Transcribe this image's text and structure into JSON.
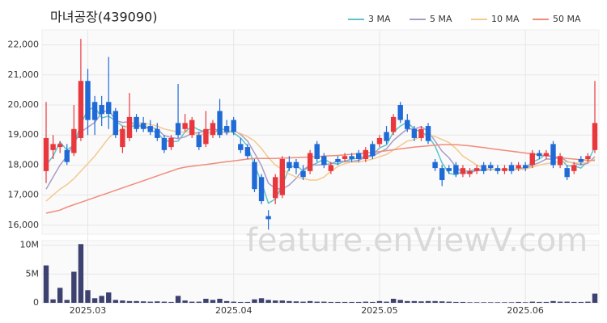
{
  "chart_data": [
    {
      "type": "candlestick",
      "title": "마녀공장(439090)",
      "watermark": "feature.enViewV.com",
      "up_color": "#e8383d",
      "down_color": "#1f6ad6",
      "ylim": [
        15700,
        22500
      ],
      "yticks": [
        {
          "value": 16000,
          "label": "16,000"
        },
        {
          "value": 17000,
          "label": "17,000"
        },
        {
          "value": 18000,
          "label": "18,000"
        },
        {
          "value": 19000,
          "label": "19,000"
        },
        {
          "value": 20000,
          "label": "20,000"
        },
        {
          "value": 21000,
          "label": "21,000"
        },
        {
          "value": 22000,
          "label": "22,000"
        }
      ],
      "grid": true,
      "open": [
        17800,
        18500,
        18600,
        18500,
        18400,
        18900,
        20800,
        20100,
        20000,
        20100,
        19800,
        18600,
        18900,
        19600,
        19400,
        19300,
        19200,
        18900,
        18600,
        19400,
        19200,
        19000,
        19000,
        18700,
        19000,
        19800,
        19300,
        19500,
        18700,
        18600,
        18100,
        17600,
        16300,
        16900,
        17000,
        18100,
        18100,
        17800,
        17800,
        18700,
        18300,
        17800,
        18200,
        18200,
        18300,
        18400,
        18200,
        18700,
        18700,
        19100,
        19100,
        20000,
        19500,
        19200,
        18900,
        19300,
        18100,
        17900,
        17900,
        18000,
        17700,
        17700,
        17800,
        18000,
        18000,
        17900,
        17800,
        18000,
        17900,
        18000,
        18000,
        18400,
        18300,
        18700,
        18000,
        17900,
        17800,
        18200,
        18200,
        18500
      ],
      "high": [
        20100,
        19000,
        18800,
        18700,
        20000,
        22200,
        21200,
        20300,
        20300,
        21600,
        19900,
        19300,
        20400,
        19700,
        19600,
        19500,
        19400,
        19000,
        19000,
        20700,
        19700,
        19600,
        19100,
        19800,
        19500,
        20200,
        19500,
        19600,
        18900,
        18700,
        18200,
        17700,
        16500,
        17700,
        18300,
        18300,
        18200,
        18000,
        18500,
        18800,
        18400,
        18100,
        18300,
        18400,
        18400,
        18500,
        18600,
        18800,
        19000,
        19300,
        19700,
        20100,
        19700,
        19300,
        19300,
        19400,
        18200,
        18000,
        18000,
        18100,
        18000,
        17900,
        18000,
        18100,
        18100,
        18000,
        18000,
        18100,
        18100,
        18100,
        18500,
        18500,
        18500,
        18800,
        18400,
        18000,
        18100,
        18300,
        18400,
        20800
      ],
      "low": [
        17400,
        18200,
        18400,
        18000,
        18300,
        18800,
        19000,
        19000,
        19300,
        19200,
        18900,
        18400,
        18800,
        19100,
        19100,
        19000,
        18800,
        18400,
        18500,
        18900,
        19100,
        18900,
        18500,
        18600,
        18900,
        18900,
        19000,
        19000,
        18400,
        18200,
        17100,
        16700,
        15850,
        16700,
        16900,
        17800,
        17700,
        17500,
        17700,
        18100,
        17900,
        17700,
        18000,
        18100,
        18100,
        18100,
        18100,
        18200,
        18600,
        18700,
        19000,
        19400,
        19100,
        18800,
        18800,
        18700,
        17800,
        17300,
        17700,
        17600,
        17600,
        17600,
        17700,
        17700,
        17800,
        17700,
        17700,
        17700,
        17800,
        17800,
        17900,
        18200,
        18200,
        17900,
        17900,
        17500,
        17700,
        18000,
        18100,
        18400
      ],
      "close": [
        18900,
        18700,
        18700,
        18100,
        19200,
        20800,
        19500,
        19500,
        19700,
        19700,
        19000,
        19200,
        19600,
        19200,
        19200,
        19100,
        18900,
        18500,
        18900,
        19000,
        19400,
        19500,
        18600,
        19200,
        19400,
        19000,
        19100,
        19100,
        18500,
        18300,
        17200,
        16800,
        16200,
        17600,
        18200,
        17900,
        17900,
        17600,
        18400,
        18200,
        18000,
        18000,
        18100,
        18300,
        18200,
        18200,
        18500,
        18300,
        18900,
        18800,
        19600,
        19500,
        19200,
        18900,
        19200,
        18800,
        17900,
        17500,
        17800,
        17700,
        17900,
        17800,
        17900,
        17800,
        17900,
        17800,
        17900,
        17800,
        18000,
        17900,
        18400,
        18300,
        18400,
        18000,
        18300,
        17600,
        18000,
        18100,
        18300,
        19400
      ],
      "series": [
        {
          "name": "3 MA",
          "color": "#5ec4c8",
          "values": [
            18000,
            18300,
            18770,
            18500,
            18670,
            19370,
            19830,
            19930,
            19570,
            19630,
            19470,
            19300,
            19270,
            19330,
            19330,
            19170,
            19070,
            18830,
            18770,
            18800,
            19100,
            19300,
            19170,
            19100,
            19070,
            19200,
            19170,
            19070,
            18900,
            18630,
            18000,
            17430,
            16730,
            16870,
            17330,
            17900,
            18000,
            17800,
            17970,
            18070,
            18200,
            18070,
            18030,
            18130,
            18200,
            18230,
            18300,
            18330,
            18570,
            18670,
            19100,
            19300,
            19430,
            19200,
            19100,
            18970,
            18630,
            18070,
            17730,
            17670,
            17800,
            17800,
            17870,
            17830,
            17870,
            17830,
            17870,
            17830,
            17900,
            17900,
            18100,
            18200,
            18370,
            18230,
            18230,
            17970,
            17970,
            17900,
            18130,
            18600
          ]
        },
        {
          "name": "5 MA",
          "color": "#a99bc9",
          "values": [
            17200,
            17600,
            18000,
            18300,
            18720,
            19100,
            19260,
            19420,
            19740,
            19840,
            19480,
            19420,
            19440,
            19340,
            19240,
            19260,
            19200,
            18980,
            18920,
            18880,
            18940,
            19060,
            19080,
            19140,
            19220,
            19140,
            19060,
            19160,
            19020,
            18800,
            18400,
            17980,
            17400,
            17220,
            17200,
            17340,
            17560,
            17840,
            18000,
            18000,
            18020,
            18040,
            18140,
            18120,
            18120,
            18160,
            18260,
            18300,
            18420,
            18540,
            18820,
            19020,
            19200,
            19200,
            19280,
            19120,
            18800,
            18460,
            18240,
            17940,
            17740,
            17740,
            17820,
            17820,
            17860,
            17840,
            17860,
            17840,
            17880,
            17880,
            18000,
            18080,
            18200,
            18200,
            18280,
            18120,
            18060,
            18000,
            18060,
            18280
          ]
        },
        {
          "name": "10 MA",
          "color": "#f3c98e",
          "values": [
            16800,
            17000,
            17200,
            17350,
            17550,
            17800,
            18050,
            18300,
            18600,
            18900,
            19100,
            19200,
            19350,
            19400,
            19400,
            19350,
            19300,
            19200,
            19150,
            19100,
            19100,
            19100,
            19000,
            19050,
            19100,
            19100,
            19100,
            19150,
            19050,
            18950,
            18800,
            18550,
            18250,
            18000,
            17850,
            17700,
            17600,
            17550,
            17500,
            17500,
            17600,
            17800,
            17950,
            18050,
            18100,
            18100,
            18150,
            18200,
            18280,
            18350,
            18500,
            18650,
            18800,
            18850,
            18950,
            19000,
            18950,
            18850,
            18750,
            18550,
            18300,
            18150,
            18000,
            17900,
            17850,
            17850,
            17850,
            17850,
            17850,
            17870,
            17930,
            18000,
            18050,
            18080,
            18120,
            18100,
            18080,
            18050,
            18100,
            18200
          ]
        },
        {
          "name": "50 MA",
          "color": "#f08c7a",
          "values": [
            16400,
            16450,
            16500,
            16600,
            16680,
            16760,
            16840,
            16920,
            17000,
            17080,
            17160,
            17240,
            17320,
            17400,
            17480,
            17560,
            17640,
            17720,
            17800,
            17880,
            17930,
            17960,
            17990,
            18020,
            18050,
            18080,
            18110,
            18140,
            18170,
            18200,
            18220,
            18220,
            18220,
            18220,
            18230,
            18240,
            18250,
            18260,
            18270,
            18280,
            18300,
            18310,
            18320,
            18340,
            18360,
            18380,
            18400,
            18420,
            18450,
            18480,
            18510,
            18540,
            18570,
            18600,
            18620,
            18640,
            18660,
            18680,
            18680,
            18680,
            18660,
            18640,
            18610,
            18580,
            18550,
            18520,
            18490,
            18460,
            18430,
            18400,
            18370,
            18340,
            18310,
            18280,
            18250,
            18220,
            18200,
            18180,
            18160,
            18150
          ]
        }
      ]
    },
    {
      "type": "bar",
      "color": "#3d4170",
      "grid": true,
      "categories": [
        null,
        null,
        null,
        null,
        null,
        null,
        "2025.03",
        null,
        null,
        null,
        null,
        null,
        null,
        null,
        null,
        null,
        null,
        null,
        null,
        null,
        null,
        null,
        null,
        null,
        null,
        null,
        null,
        "2025.04",
        null,
        null,
        null,
        null,
        null,
        null,
        null,
        null,
        null,
        null,
        null,
        null,
        null,
        null,
        null,
        null,
        null,
        null,
        null,
        null,
        "2025.05",
        null,
        null,
        null,
        null,
        null,
        null,
        null,
        null,
        null,
        null,
        null,
        null,
        null,
        null,
        null,
        null,
        null,
        null,
        null,
        null,
        "2025.06",
        null,
        null,
        null,
        null,
        null,
        null,
        null,
        null,
        null,
        null
      ],
      "ylim": [
        0,
        10800000
      ],
      "yticks": [
        0,
        {
          "value": 5000000,
          "label": "5M"
        },
        {
          "value": 10000000,
          "label": "10M"
        }
      ],
      "values": [
        6500000,
        600000,
        2600000,
        500000,
        5400000,
        10200000,
        2200000,
        800000,
        1200000,
        1800000,
        500000,
        400000,
        300000,
        300000,
        250000,
        200000,
        250000,
        200000,
        150000,
        1200000,
        400000,
        200000,
        200000,
        700000,
        500000,
        700000,
        300000,
        200000,
        150000,
        150000,
        600000,
        800000,
        500000,
        400000,
        400000,
        300000,
        250000,
        200000,
        300000,
        200000,
        200000,
        150000,
        150000,
        150000,
        150000,
        150000,
        200000,
        150000,
        300000,
        200000,
        700000,
        500000,
        300000,
        300000,
        250000,
        300000,
        300000,
        250000,
        200000,
        150000,
        150000,
        100000,
        100000,
        100000,
        100000,
        100000,
        100000,
        100000,
        150000,
        100000,
        200000,
        150000,
        150000,
        300000,
        200000,
        200000,
        150000,
        150000,
        200000,
        1600000
      ]
    }
  ]
}
